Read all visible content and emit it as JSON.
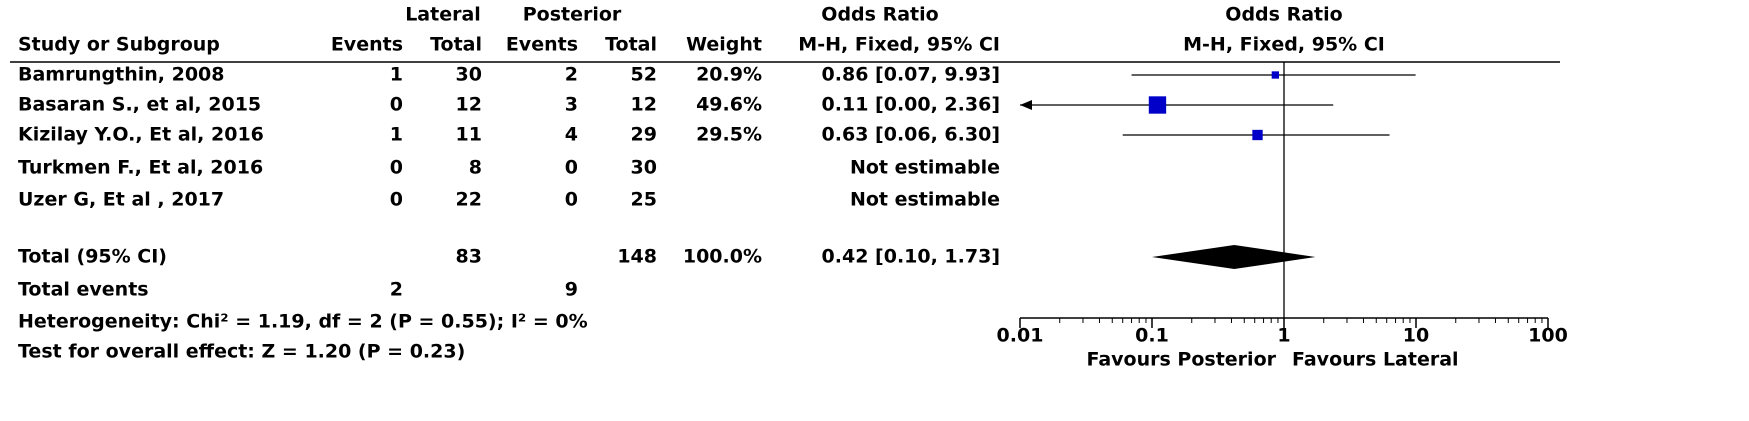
{
  "chart_data": {
    "type": "forest",
    "header": {
      "group_lateral": "Lateral",
      "group_posterior": "Posterior",
      "group_or_table": "Odds Ratio",
      "group_or_plot": "Odds Ratio",
      "study": "Study or Subgroup",
      "events_lateral": "Events",
      "total_lateral": "Total",
      "events_posterior": "Events",
      "total_posterior": "Total",
      "weight": "Weight",
      "method_table": "M-H, Fixed, 95% CI",
      "method_plot": "M-H, Fixed, 95% CI"
    },
    "studies": [
      {
        "name": "Bamrungthin, 2008",
        "events_lateral": 1,
        "total_lateral": 30,
        "events_posterior": 2,
        "total_posterior": 52,
        "weight": 20.9,
        "weight_label": "20.9%",
        "or": 0.86,
        "ci_lower": 0.07,
        "ci_upper": 9.93,
        "or_label": "0.86 [0.07, 9.93]"
      },
      {
        "name": "Basaran S., et al, 2015",
        "events_lateral": 0,
        "total_lateral": 12,
        "events_posterior": 3,
        "total_posterior": 12,
        "weight": 49.6,
        "weight_label": "49.6%",
        "or": 0.11,
        "ci_lower": 0.0,
        "ci_upper": 2.36,
        "or_label": "0.11 [0.00, 2.36]"
      },
      {
        "name": "Kizilay Y.O., Et al, 2016",
        "events_lateral": 1,
        "total_lateral": 11,
        "events_posterior": 4,
        "total_posterior": 29,
        "weight": 29.5,
        "weight_label": "29.5%",
        "or": 0.63,
        "ci_lower": 0.06,
        "ci_upper": 6.3,
        "or_label": "0.63 [0.06, 6.30]"
      },
      {
        "name": "Turkmen F., Et al,  2016",
        "events_lateral": 0,
        "total_lateral": 8,
        "events_posterior": 0,
        "total_posterior": 30,
        "or_label": "Not estimable"
      },
      {
        "name": "Uzer G, Et al , 2017",
        "events_lateral": 0,
        "total_lateral": 22,
        "events_posterior": 0,
        "total_posterior": 25,
        "or_label": "Not estimable"
      }
    ],
    "total": {
      "name": "Total (95% CI)",
      "total_lateral": 83,
      "total_posterior": 148,
      "weight": 100,
      "weight_label": "100.0%",
      "or": 0.42,
      "ci_lower": 0.1,
      "ci_upper": 1.73,
      "or_label": "0.42 [0.10, 1.73]"
    },
    "total_events": {
      "name": "Total events",
      "events_lateral": 2,
      "events_posterior": 9
    },
    "heterogeneity": "Heterogeneity: Chi² = 1.19, df = 2 (P = 0.55); I² = 0%",
    "overall_effect": "Test for overall effect: Z = 1.20 (P = 0.23)",
    "log_scale": true,
    "xlim": [
      0.01,
      100
    ],
    "xticks": [
      0.01,
      0.1,
      1,
      10,
      100
    ],
    "xlabel_left": "Favours Posterior",
    "xlabel_right": "Favours Lateral",
    "square_color": "#0000c8",
    "diamond_color": "#000000"
  }
}
